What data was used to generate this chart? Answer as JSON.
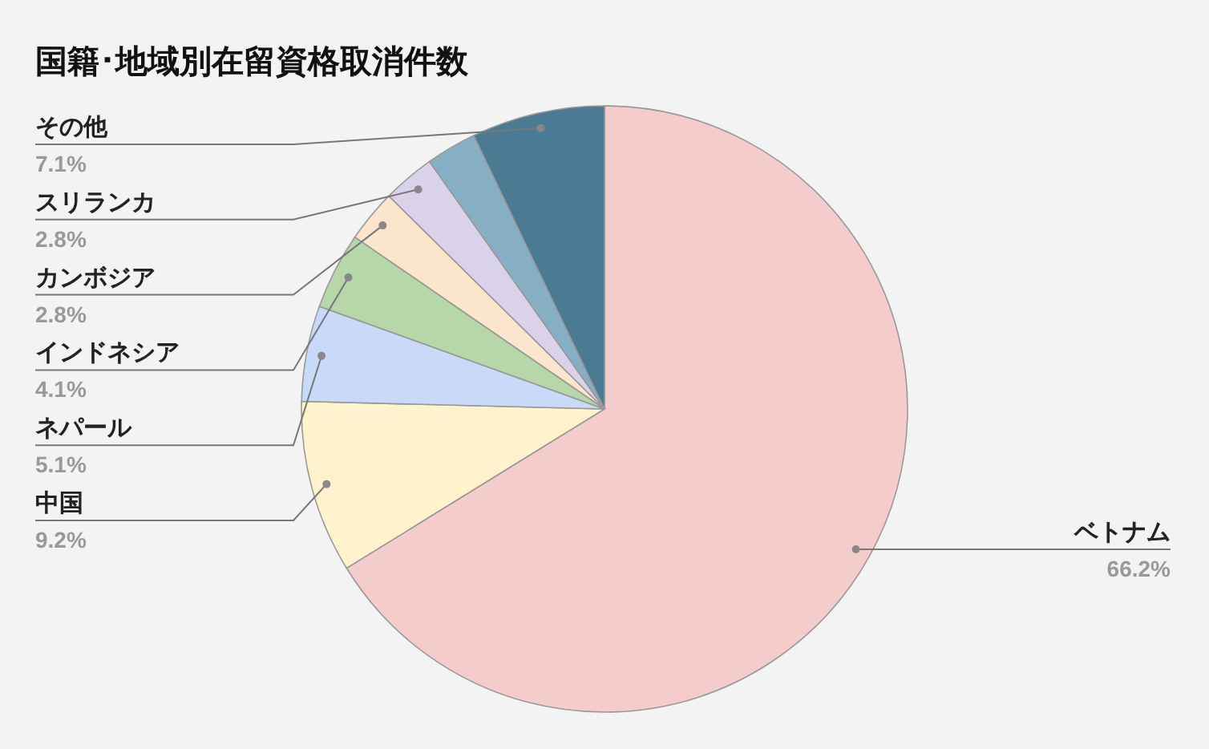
{
  "chart_data": {
    "type": "pie",
    "title": "国籍･地域別在留資格取消件数",
    "categories": [
      "ベトナム",
      "中国",
      "ネパール",
      "インドネシア",
      "カンボジア",
      "スリランカ",
      null,
      "その他"
    ],
    "values": [
      66.2,
      9.2,
      5.1,
      4.1,
      2.8,
      2.8,
      2.7,
      7.1
    ],
    "value_labels": [
      "66.2%",
      "9.2%",
      "5.1%",
      "4.1%",
      "2.8%",
      "2.8%",
      null,
      "7.1%"
    ],
    "colors": [
      "#f4cccc",
      "#fff2cc",
      "#c9daf8",
      "#b6d7a8",
      "#fce5cd",
      "#d9d2e9",
      "#87afc4",
      "#4a7b92"
    ]
  }
}
